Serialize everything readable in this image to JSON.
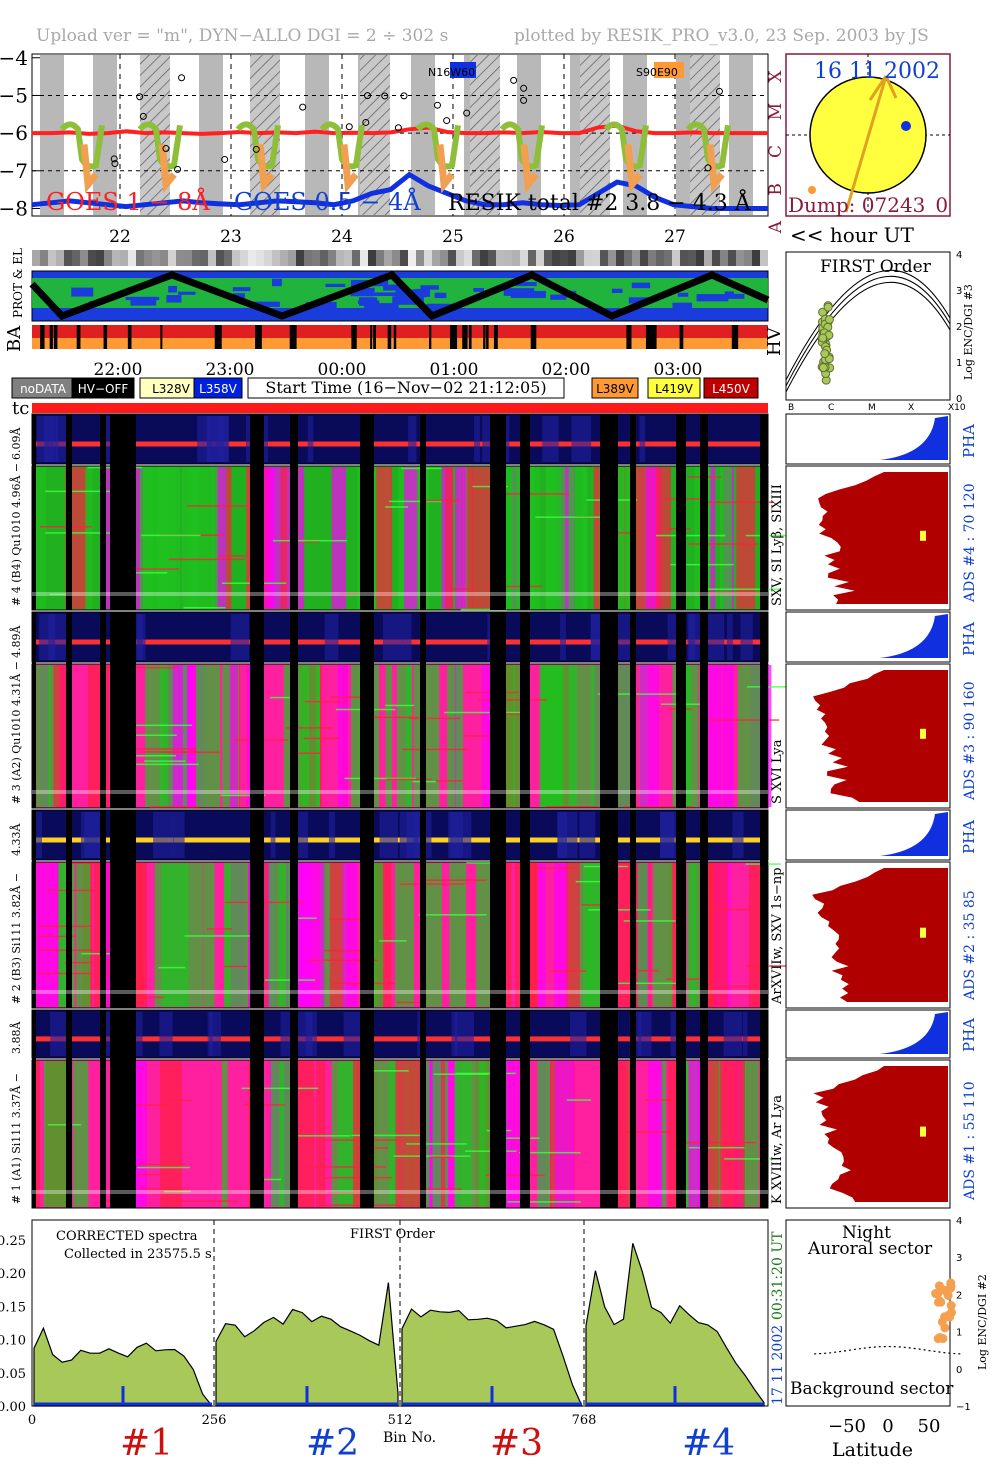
{
  "header": {
    "left": "Upload ver = \"m\", DYN−ALLO DGI =   2 ÷ 302 s",
    "right": "plotted by RESIK_PRO_v3.0, 23 Sep. 2003 by JS"
  },
  "colors": {
    "goes_short": "#ff2020",
    "goes_long": "#8fbf3a",
    "resik_total": "#1030e0",
    "spectrum_fill": "#a8c85a",
    "ads_fill": "#b00000",
    "pha_fill": "#1030e0",
    "sun_fill": "#ffff40",
    "sun_edge": "#8b1a3a",
    "title_red": "#cc1010",
    "title_blue": "#1040d0",
    "heatmap_magenta": "#ff00ff",
    "heatmap_red": "#ff2040",
    "heatmap_green": "#20c020"
  },
  "chart_data": [
    {
      "type": "line",
      "id": "goes_panel",
      "yticks": [
        "−4",
        "−5",
        "−6",
        "−7",
        "−8"
      ],
      "ylim": [
        -8.2,
        -3.9
      ],
      "xticks": [
        "22",
        "23",
        "24",
        "25",
        "26",
        "27"
      ],
      "right_axis_letters": [
        "X",
        "M",
        "C",
        "B",
        "A"
      ],
      "legend": [
        "GOES 1 − 8Å",
        "GOES 0.5 − 4Å",
        "RESIK total #2  3.8 − 4.3 Å"
      ],
      "annotations": [
        "N16W60",
        "S90E90"
      ],
      "xlabel_note": "<< hour UT",
      "series": [
        {
          "name": "GOES 1 − 8Å",
          "values": [
            -6.0,
            -6.0,
            -5.98,
            -6.02,
            -6.0,
            -5.95,
            -6.0,
            -5.98,
            -6.0,
            -6.02,
            -6.0,
            -5.97,
            -6.0,
            -5.98,
            -6.0,
            -5.96,
            -6.0,
            -5.99,
            -6.0,
            -5.98,
            -5.9,
            -5.85,
            -5.97,
            -6.0,
            -6.0,
            -5.98,
            -6.0,
            -5.97,
            -6.0,
            -6.0,
            -5.85,
            -5.8,
            -5.95,
            -6.0,
            -6.0,
            -5.98,
            -6.0,
            -6.0,
            -6.0,
            -6.0
          ]
        },
        {
          "name": "GOES 0.5 − 4Å",
          "values": [
            -7.9,
            -7.85,
            -7.8,
            -7.85,
            -7.9,
            -7.95,
            -7.9,
            -7.85,
            -7.8,
            -7.85,
            -7.88,
            -7.9,
            -7.85,
            -7.8,
            -7.82,
            -7.85,
            -7.9,
            -7.8,
            -7.6,
            -7.5,
            -7.1,
            -7.4,
            -7.6,
            -7.8,
            -7.9,
            -7.9,
            -7.85,
            -7.9,
            -7.92,
            -7.9,
            -7.6,
            -7.3,
            -7.4,
            -7.7,
            -7.9,
            -7.95,
            -8.0,
            -8.0,
            -8.0,
            -8.0
          ]
        }
      ]
    },
    {
      "type": "scatter",
      "id": "sun_disk",
      "date_label": "16 11 2002",
      "dump_label": "Dump: 07243_0"
    },
    {
      "type": "heatmap",
      "id": "orbit_panel",
      "left_labels": [
        "PROT & EL",
        "BA"
      ],
      "right_label": "HV",
      "time_ticks": [
        "22:00",
        "23:00",
        "00:00",
        "01:00",
        "02:00",
        "03:00"
      ],
      "legend": [
        "noDATA",
        "HV−OFF",
        "L328V",
        "L358V",
        "Start Time (16−Nov−02 21:12:05)",
        "L389V",
        "L419V",
        "L450V"
      ],
      "legend_colors": [
        "#808080",
        "#000000",
        "#ffffc0",
        "#0020e0",
        "#ffffff",
        "#ff9933",
        "#ffff40",
        "#c00000"
      ]
    },
    {
      "type": "line",
      "id": "first_order",
      "title": "FIRST Order",
      "ylabel": "Log ENC/DGI #3",
      "yticks": [
        "4",
        "3",
        "2",
        "1",
        "0"
      ],
      "xticks": [
        "B",
        "C",
        "M",
        "X",
        "X10"
      ]
    },
    {
      "type": "heatmap",
      "id": "channels",
      "tc_label": "tc",
      "channels": [
        {
          "pha_label": "6.09Å",
          "main_label": "# 4 (B4) Qu1010 4.96Å −",
          "side_label": "SXV, SI Lyβ, SIXIII",
          "ads_label": "ADS #4 :   70 120"
        },
        {
          "pha_label": "4.89Å",
          "main_label": "# 3 (A2) Qu1010  4.31Å −",
          "side_label": "S XVI Lya",
          "ads_label": "ADS #3 :   90 160"
        },
        {
          "pha_label": "4.33Å",
          "main_label": "# 2 (B3) Si111  3.82Å −",
          "side_label": "ArXVIIw, SXV 1s−np",
          "ads_label": "ADS #2 :   35  85"
        },
        {
          "pha_label": "3.88Å",
          "main_label": "# 1 (A1) Si111  3.37Å −",
          "side_label": "K XVIIIw, Ar Lya",
          "ads_label": "ADS #1 :   55 110"
        }
      ],
      "pha_tag": "PHA"
    },
    {
      "type": "area",
      "id": "spectrum",
      "annotation1": "CORRECTED spectra",
      "annotation2": "Collected in 23575.5 s",
      "annotation3": "FIRST Order",
      "xlabel": "Bin No.",
      "xticks": [
        "0",
        "256",
        "512",
        "768"
      ],
      "yticks": [
        "0.25",
        "0.20",
        "0.15",
        "0.10",
        "0.05",
        "0.00"
      ],
      "ylim": [
        0,
        0.28
      ],
      "side_date": "17 11 2002",
      "side_time": "00:31:20 UT",
      "segment_labels": [
        "#1",
        "#2",
        "#3",
        "#4"
      ],
      "series": [
        {
          "values": [
            0.09,
            0.12,
            0.08,
            0.07,
            0.075,
            0.08,
            0.078,
            0.08,
            0.082,
            0.085,
            0.08,
            0.085,
            0.09,
            0.088,
            0.09,
            0.085,
            0.08,
            0.06,
            0.02,
            0.0
          ]
        },
        {
          "values": [
            0.1,
            0.12,
            0.12,
            0.11,
            0.115,
            0.12,
            0.13,
            0.125,
            0.14,
            0.135,
            0.13,
            0.13,
            0.125,
            0.12,
            0.115,
            0.11,
            0.1,
            0.09,
            0.19,
            0.02
          ]
        },
        {
          "values": [
            0.12,
            0.15,
            0.14,
            0.145,
            0.14,
            0.14,
            0.14,
            0.135,
            0.13,
            0.13,
            0.125,
            0.12,
            0.12,
            0.125,
            0.13,
            0.12,
            0.11,
            0.07,
            0.03,
            0.0
          ]
        },
        {
          "values": [
            0.12,
            0.2,
            0.15,
            0.12,
            0.13,
            0.25,
            0.2,
            0.15,
            0.14,
            0.13,
            0.15,
            0.14,
            0.13,
            0.12,
            0.11,
            0.09,
            0.07,
            0.05,
            0.03,
            0.01
          ]
        }
      ]
    },
    {
      "type": "scatter",
      "id": "latitude",
      "title1": "Night",
      "title2": "Auroral sector",
      "bottom_label": "Background sector",
      "xlabel": "Latitude",
      "xticks": [
        "−50",
        "0",
        "50"
      ],
      "ylabel": "Log ENC/DGI #2",
      "yticks": [
        "4",
        "3",
        "2",
        "1",
        "0",
        "−1"
      ]
    }
  ]
}
